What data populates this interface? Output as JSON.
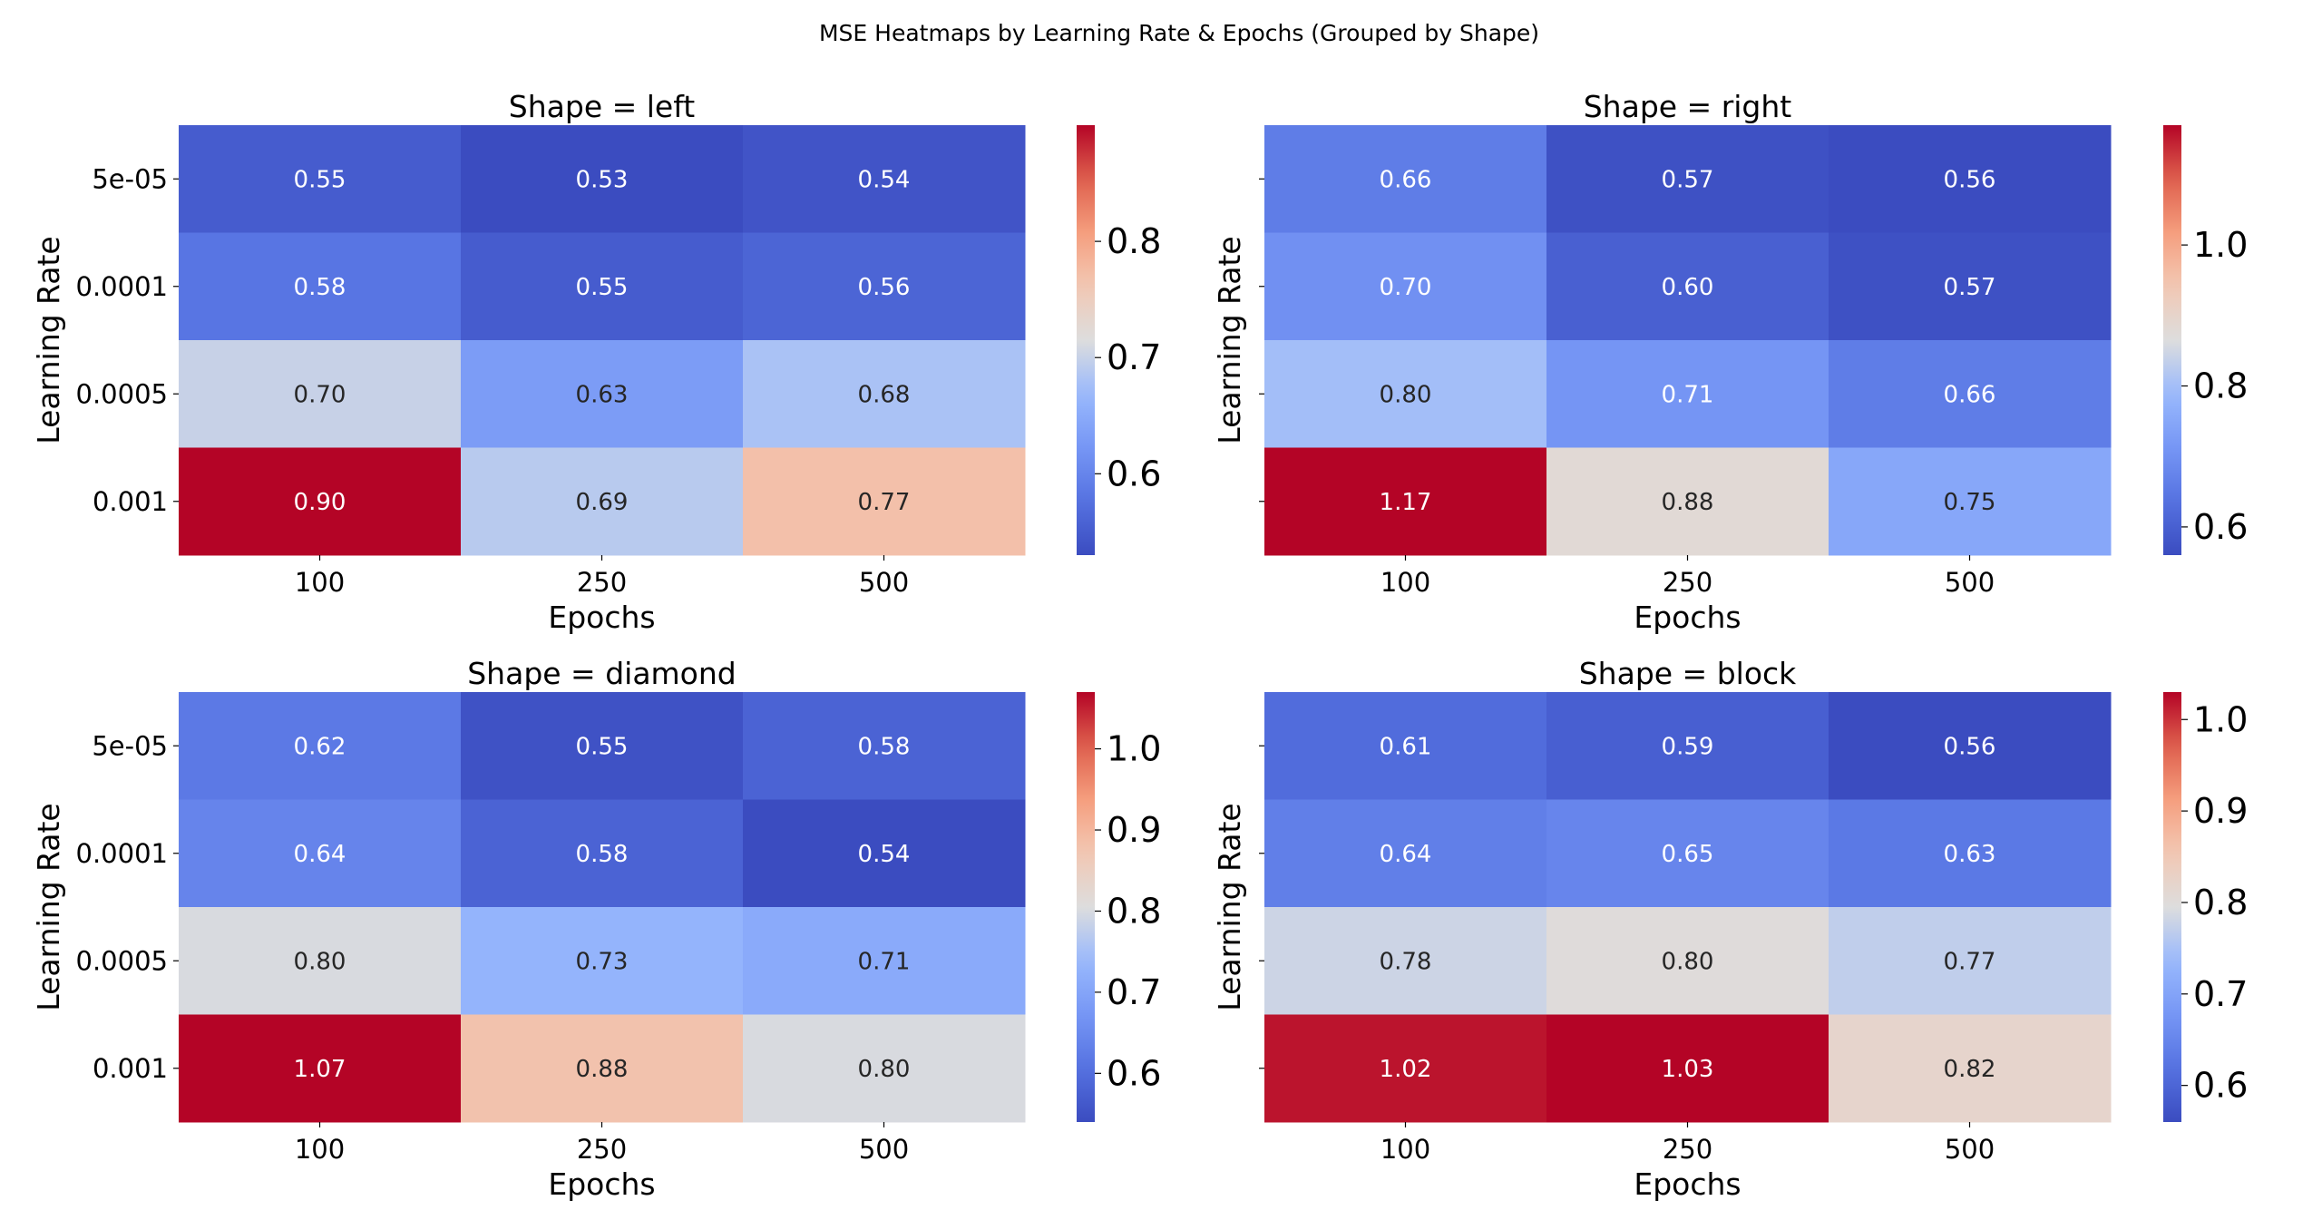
{
  "figure": {
    "suptitle": "MSE Heatmaps by Learning Rate & Epochs (Grouped by Shape)"
  },
  "chart_data": [
    {
      "type": "heatmap",
      "title": "Shape = left",
      "xlabel": "Epochs",
      "ylabel": "Learning Rate",
      "x_categories": [
        "100",
        "250",
        "500"
      ],
      "y_categories": [
        "5e-05",
        "0.0001",
        "0.0005",
        "0.001"
      ],
      "values": [
        [
          0.55,
          0.53,
          0.54
        ],
        [
          0.58,
          0.55,
          0.56
        ],
        [
          0.7,
          0.63,
          0.68
        ],
        [
          0.9,
          0.69,
          0.77
        ]
      ],
      "cell_labels": [
        [
          "0.55",
          "0.53",
          "0.54"
        ],
        [
          "0.58",
          "0.55",
          "0.56"
        ],
        [
          "0.70",
          "0.63",
          "0.68"
        ],
        [
          "0.90",
          "0.69",
          "0.77"
        ]
      ],
      "colormap": "coolwarm",
      "vmin": 0.53,
      "vmax": 0.9,
      "colorbar_ticks": [
        0.6,
        0.7,
        0.8
      ],
      "colorbar_tick_labels": [
        "0.6",
        "0.7",
        "0.8"
      ],
      "show_y_tick_labels": true
    },
    {
      "type": "heatmap",
      "title": "Shape = right",
      "xlabel": "Epochs",
      "ylabel": "Learning Rate",
      "x_categories": [
        "100",
        "250",
        "500"
      ],
      "y_categories": [
        "5e-05",
        "0.0001",
        "0.0005",
        "0.001"
      ],
      "values": [
        [
          0.66,
          0.57,
          0.56
        ],
        [
          0.7,
          0.6,
          0.57
        ],
        [
          0.8,
          0.71,
          0.66
        ],
        [
          1.17,
          0.88,
          0.75
        ]
      ],
      "cell_labels": [
        [
          "0.66",
          "0.57",
          "0.56"
        ],
        [
          "0.70",
          "0.60",
          "0.57"
        ],
        [
          "0.80",
          "0.71",
          "0.66"
        ],
        [
          "1.17",
          "0.88",
          "0.75"
        ]
      ],
      "colormap": "coolwarm",
      "vmin": 0.56,
      "vmax": 1.17,
      "colorbar_ticks": [
        0.6,
        0.8,
        1.0
      ],
      "colorbar_tick_labels": [
        "0.6",
        "0.8",
        "1.0"
      ],
      "show_y_tick_labels": false
    },
    {
      "type": "heatmap",
      "title": "Shape = diamond",
      "xlabel": "Epochs",
      "ylabel": "Learning Rate",
      "x_categories": [
        "100",
        "250",
        "500"
      ],
      "y_categories": [
        "5e-05",
        "0.0001",
        "0.0005",
        "0.001"
      ],
      "values": [
        [
          0.62,
          0.55,
          0.58
        ],
        [
          0.64,
          0.58,
          0.54
        ],
        [
          0.8,
          0.73,
          0.71
        ],
        [
          1.07,
          0.88,
          0.8
        ]
      ],
      "cell_labels": [
        [
          "0.62",
          "0.55",
          "0.58"
        ],
        [
          "0.64",
          "0.58",
          "0.54"
        ],
        [
          "0.80",
          "0.73",
          "0.71"
        ],
        [
          "1.07",
          "0.88",
          "0.80"
        ]
      ],
      "colormap": "coolwarm",
      "vmin": 0.54,
      "vmax": 1.07,
      "colorbar_ticks": [
        0.6,
        0.7,
        0.8,
        0.9,
        1.0
      ],
      "colorbar_tick_labels": [
        "0.6",
        "0.7",
        "0.8",
        "0.9",
        "1.0"
      ],
      "show_y_tick_labels": true
    },
    {
      "type": "heatmap",
      "title": "Shape = block",
      "xlabel": "Epochs",
      "ylabel": "Learning Rate",
      "x_categories": [
        "100",
        "250",
        "500"
      ],
      "y_categories": [
        "5e-05",
        "0.0001",
        "0.0005",
        "0.001"
      ],
      "values": [
        [
          0.61,
          0.59,
          0.56
        ],
        [
          0.64,
          0.65,
          0.63
        ],
        [
          0.78,
          0.8,
          0.77
        ],
        [
          1.02,
          1.03,
          0.82
        ]
      ],
      "cell_labels": [
        [
          "0.61",
          "0.59",
          "0.56"
        ],
        [
          "0.64",
          "0.65",
          "0.63"
        ],
        [
          "0.78",
          "0.80",
          "0.77"
        ],
        [
          "1.02",
          "1.03",
          "0.82"
        ]
      ],
      "colormap": "coolwarm",
      "vmin": 0.56,
      "vmax": 1.03,
      "colorbar_ticks": [
        0.6,
        0.7,
        0.8,
        0.9,
        1.0
      ],
      "colorbar_tick_labels": [
        "0.6",
        "0.7",
        "0.8",
        "0.9",
        "1.0"
      ],
      "show_y_tick_labels": false
    }
  ]
}
